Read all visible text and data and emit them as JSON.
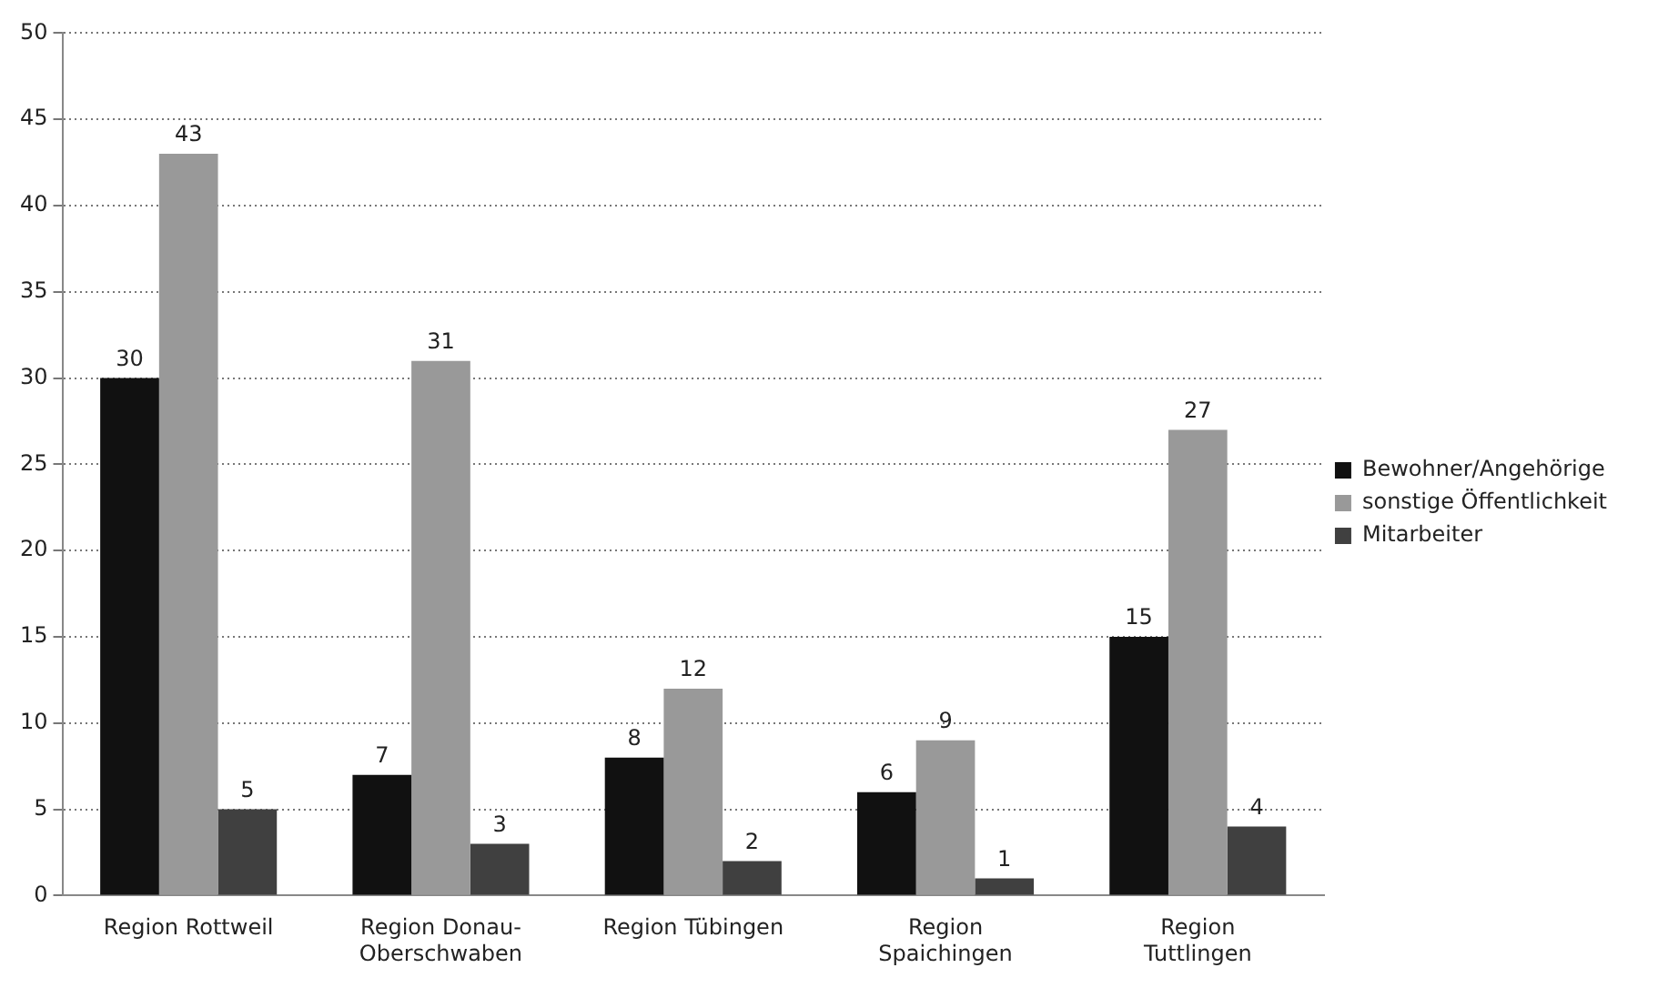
{
  "chart_data": {
    "type": "bar",
    "categories": [
      "Region Rottweil",
      "Region Donau-Oberschwaben",
      "Region Tübingen",
      "Region Spaichingen",
      "Region Tuttlingen"
    ],
    "series": [
      {
        "name": "Bewohner/Angehörige",
        "color": "#111111",
        "values": [
          30,
          7,
          8,
          6,
          15
        ]
      },
      {
        "name": "sonstige Öffentlichkeit",
        "color": "#999999",
        "values": [
          43,
          31,
          12,
          9,
          27
        ]
      },
      {
        "name": "Mitarbeiter",
        "color": "#404040",
        "values": [
          5,
          3,
          2,
          1,
          4
        ]
      }
    ],
    "ylim": [
      0,
      50
    ],
    "yticks": [
      0,
      5,
      10,
      15,
      20,
      25,
      30,
      35,
      40,
      45,
      50
    ],
    "grid": "y",
    "legend": "right",
    "data_labels": true
  }
}
